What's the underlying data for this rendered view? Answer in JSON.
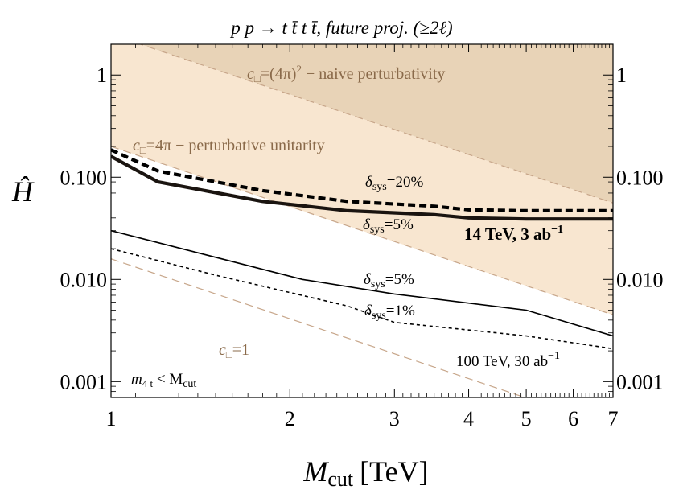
{
  "chart_data": {
    "type": "line",
    "title": "p p → t t̄ t t̄, future proj. (≥2ℓ)",
    "xlabel": "M",
    "xlabel_sub": "cut",
    "xlabel_unit": "[TeV]",
    "ylabel": "Ĥ",
    "x_scale": "log",
    "y_scale": "log",
    "xlim": [
      1,
      7
    ],
    "ylim": [
      0.0007,
      2.0
    ],
    "x_ticks": [
      1,
      2,
      3,
      4,
      5,
      6,
      7
    ],
    "x_tick_labels": [
      "1",
      "2",
      "3",
      "4",
      "5",
      "6",
      "7"
    ],
    "y_ticks": [
      1,
      0.1,
      0.01,
      0.001
    ],
    "y_tick_labels": [
      "1",
      "0.100",
      "0.010",
      "0.001"
    ],
    "colors": {
      "band_dark": "#e8d3b7",
      "band_light": "#f8e6d0",
      "guide_line": "#c7a68a",
      "curve": "#000000",
      "curve_14tev": "#1a1410"
    },
    "regions": [
      {
        "name": "naive-perturbativity-region",
        "below_line": "c_4pi_sq"
      },
      {
        "name": "perturbative-unitarity-region",
        "below_line": "c_4pi"
      }
    ],
    "guide_lines": [
      {
        "id": "c_4pi_sq",
        "x": [
          1,
          7
        ],
        "y": [
          2.5,
          0.056
        ]
      },
      {
        "id": "c_4pi",
        "x": [
          1,
          7
        ],
        "y": [
          0.2,
          0.0045
        ]
      },
      {
        "id": "c_1",
        "x": [
          1,
          7
        ],
        "y": [
          0.0159,
          0.00036
        ]
      }
    ],
    "series": [
      {
        "id": "14tev-5",
        "style": "thick-solid",
        "x": [
          1,
          1.2,
          1.8,
          2.5,
          3.5,
          4,
          5,
          7
        ],
        "y": [
          0.16,
          0.09,
          0.058,
          0.047,
          0.043,
          0.04,
          0.039,
          0.039
        ]
      },
      {
        "id": "14tev-20",
        "style": "thick-dashed",
        "x": [
          1,
          1.2,
          1.8,
          2.5,
          3.5,
          4,
          5,
          7
        ],
        "y": [
          0.185,
          0.115,
          0.074,
          0.058,
          0.052,
          0.048,
          0.047,
          0.047
        ]
      },
      {
        "id": "100tev-5",
        "style": "thin-solid",
        "x": [
          1,
          2.1,
          3,
          5,
          7
        ],
        "y": [
          0.03,
          0.01,
          0.0072,
          0.005,
          0.0028
        ]
      },
      {
        "id": "100tev-1",
        "style": "thin-dotted",
        "x": [
          1,
          1.5,
          2.5,
          3,
          5,
          7
        ],
        "y": [
          0.02,
          0.011,
          0.0055,
          0.0038,
          0.0028,
          0.0021
        ]
      }
    ],
    "annotations": {
      "naive": {
        "c": "c",
        "sub": "□",
        "text": "=(4π)",
        "sup": "2",
        "rest": " − naive perturbativity"
      },
      "unitarity": {
        "c": "c",
        "sub": "□",
        "text": "=4π − perturbative unitarity"
      },
      "c1": {
        "c": "c",
        "sub": "□",
        "text": "=1"
      },
      "d20": {
        "d": "δ",
        "sub": "sys",
        "text": "=20%"
      },
      "d5_14": {
        "d": "δ",
        "sub": "sys",
        "text": "=5%"
      },
      "d5_100": {
        "d": "δ",
        "sub": "sys",
        "text": "=5%"
      },
      "d1": {
        "d": "δ",
        "sub": "sys",
        "text": "=1%"
      },
      "tev14": {
        "text": "14 TeV, 3 ab",
        "sup": "−1"
      },
      "tev100": {
        "text": "100 TeV, 30 ab",
        "sup": "−1"
      },
      "cut": {
        "m": "m",
        "sub": "4 t",
        "text": " < M",
        "sub2": "cut"
      }
    }
  }
}
